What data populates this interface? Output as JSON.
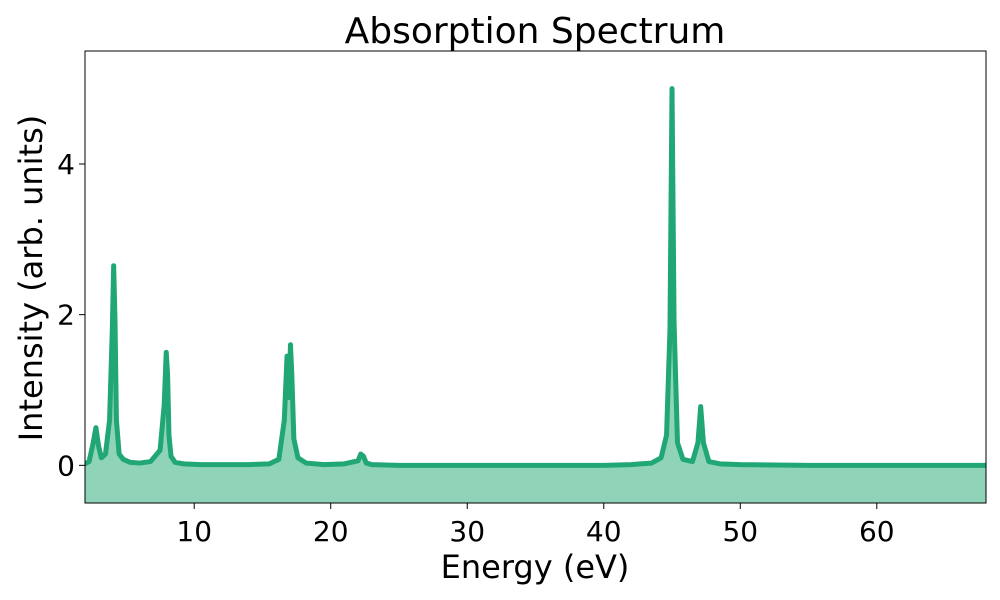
{
  "chart_data": {
    "type": "area",
    "title": "Absorption Spectrum",
    "xlabel": "Energy (eV)",
    "ylabel": "Intensity (arb. units)",
    "xlim": [
      2,
      68
    ],
    "ylim": [
      -0.5,
      5.5
    ],
    "xticks": [
      10,
      20,
      30,
      40,
      50,
      60
    ],
    "yticks": [
      0,
      2,
      4
    ],
    "grid": false,
    "legend": "none",
    "colors": {
      "line": "#21a675",
      "fill": "#8fd4b8"
    },
    "fill_baseline": -0.5,
    "series": [
      {
        "x": [
          2.0,
          2.3,
          2.6,
          2.8,
          3.0,
          3.2,
          3.5,
          3.8,
          4.0,
          4.1,
          4.2,
          4.3,
          4.5,
          4.8,
          5.3,
          6.0,
          6.8,
          7.5,
          7.8,
          7.95,
          8.05,
          8.15,
          8.3,
          8.6,
          9.2,
          10.5,
          12.0,
          14.0,
          15.5,
          16.2,
          16.6,
          16.8,
          16.95,
          17.05,
          17.15,
          17.3,
          17.6,
          18.2,
          19.5,
          21.0,
          22.0,
          22.2,
          22.4,
          22.6,
          23.0,
          25.0,
          30.0,
          35.0,
          40.0,
          42.0,
          43.5,
          44.2,
          44.6,
          44.85,
          45.0,
          45.15,
          45.4,
          45.8,
          46.5,
          46.9,
          47.1,
          47.3,
          47.7,
          48.5,
          50.0,
          55.0,
          60.0,
          65.0,
          68.0
        ],
        "y": [
          0.02,
          0.05,
          0.3,
          0.5,
          0.25,
          0.1,
          0.15,
          0.6,
          1.8,
          2.65,
          1.9,
          0.6,
          0.15,
          0.08,
          0.04,
          0.03,
          0.05,
          0.2,
          0.8,
          1.5,
          1.2,
          0.4,
          0.12,
          0.04,
          0.02,
          0.01,
          0.01,
          0.01,
          0.02,
          0.08,
          0.6,
          1.45,
          0.9,
          1.6,
          1.2,
          0.35,
          0.1,
          0.03,
          0.01,
          0.02,
          0.06,
          0.15,
          0.12,
          0.03,
          0.01,
          0.0,
          0.0,
          0.0,
          0.0,
          0.01,
          0.03,
          0.1,
          0.4,
          1.8,
          5.0,
          1.9,
          0.3,
          0.08,
          0.05,
          0.3,
          0.78,
          0.3,
          0.05,
          0.02,
          0.01,
          0.0,
          0.0,
          0.0,
          0.0
        ]
      }
    ]
  }
}
